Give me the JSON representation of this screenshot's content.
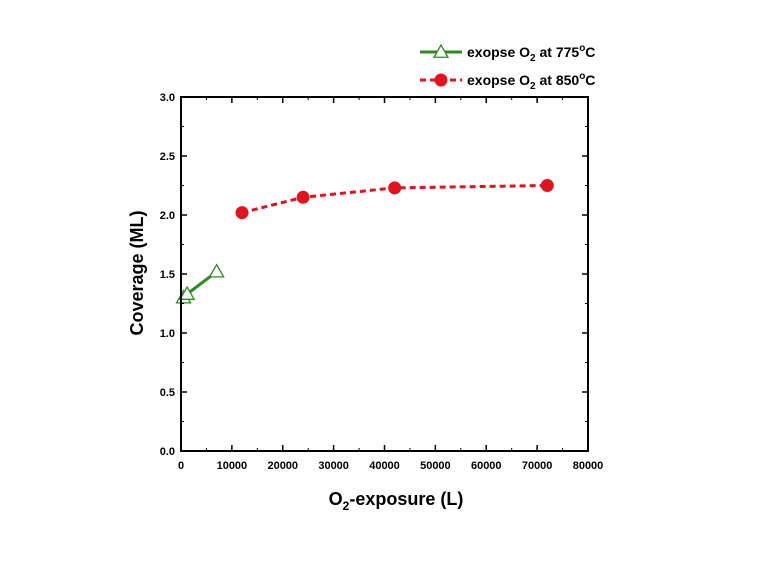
{
  "chart_data": {
    "type": "line",
    "xlabel": {
      "main": "O",
      "sub": "2",
      "rest": "-exposure (L)"
    },
    "ylabel": "Coverage (ML)",
    "xlim": [
      0,
      80000
    ],
    "ylim": [
      0,
      3.0
    ],
    "x_ticks": [
      0,
      10000,
      20000,
      30000,
      40000,
      50000,
      60000,
      70000,
      80000
    ],
    "y_ticks": [
      "0.0",
      "0.5",
      "1.0",
      "1.5",
      "2.0",
      "2.5",
      "3.0"
    ],
    "grid": false,
    "legend_position": "top-right, outside plot",
    "series": [
      {
        "name": {
          "pre": "exopse O",
          "sub": "2",
          "post": " at 775",
          "sup": "o",
          "unit": "C"
        },
        "color": "#2e8b22",
        "line_style": "solid",
        "marker": "open-triangle",
        "x": [
          500,
          1200,
          7000
        ],
        "y": [
          1.3,
          1.33,
          1.52
        ]
      },
      {
        "name": {
          "pre": "exopse O",
          "sub": "2",
          "post": " at 850",
          "sup": "o",
          "unit": "C"
        },
        "color": "#e0141e",
        "line_style": "dashed",
        "marker": "filled-circle",
        "x": [
          12000,
          24000,
          42000,
          72000
        ],
        "y": [
          2.02,
          2.15,
          2.23,
          2.25
        ]
      }
    ]
  }
}
